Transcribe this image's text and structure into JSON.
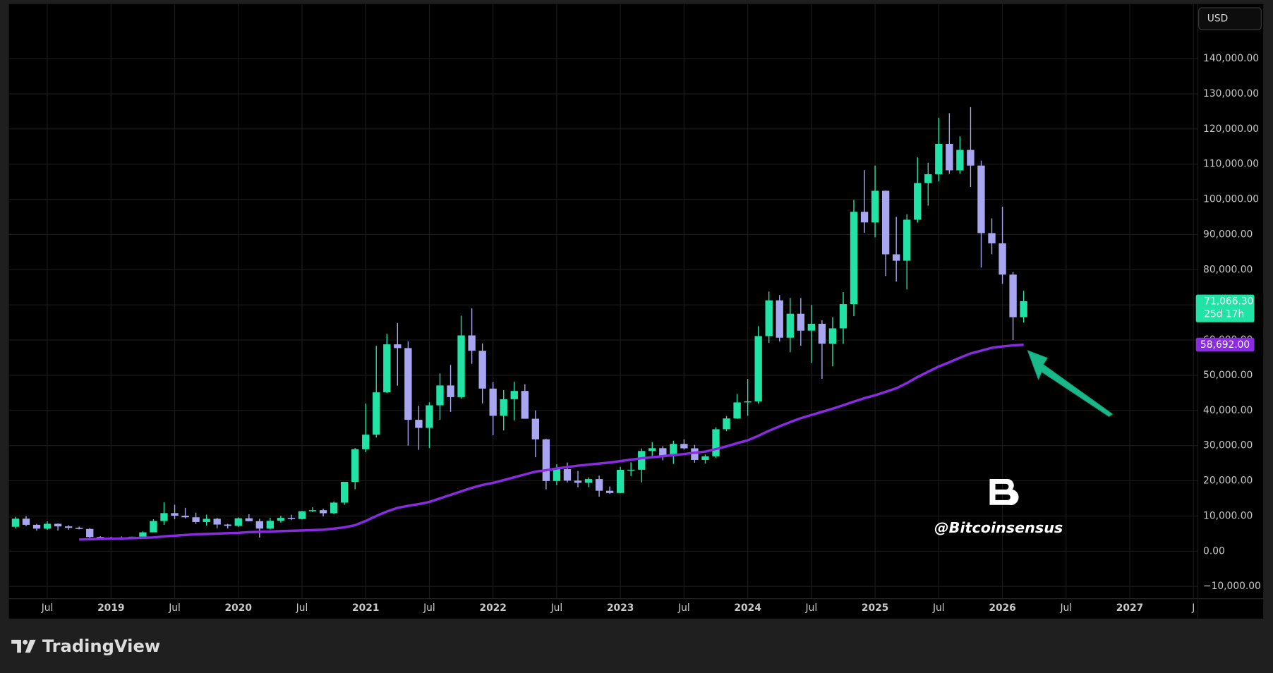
{
  "toolbar": {
    "currency": "USD"
  },
  "footer": {
    "brand": "TradingView"
  },
  "chart_data": {
    "type": "candlestick",
    "x": [
      "2018-04",
      "2018-05",
      "2018-06",
      "2018-07",
      "2018-08",
      "2018-09",
      "2018-10",
      "2018-11",
      "2018-12",
      "2019-01",
      "2019-02",
      "2019-03",
      "2019-04",
      "2019-05",
      "2019-06",
      "2019-07",
      "2019-08",
      "2019-09",
      "2019-10",
      "2019-11",
      "2019-12",
      "2020-01",
      "2020-02",
      "2020-03",
      "2020-04",
      "2020-05",
      "2020-06",
      "2020-07",
      "2020-08",
      "2020-09",
      "2020-10",
      "2020-11",
      "2020-12",
      "2021-01",
      "2021-02",
      "2021-03",
      "2021-04",
      "2021-05",
      "2021-06",
      "2021-07",
      "2021-08",
      "2021-09",
      "2021-10",
      "2021-11",
      "2021-12",
      "2022-01",
      "2022-02",
      "2022-03",
      "2022-04",
      "2022-05",
      "2022-06",
      "2022-07",
      "2022-08",
      "2022-09",
      "2022-10",
      "2022-11",
      "2022-12",
      "2023-01",
      "2023-02",
      "2023-03",
      "2023-04",
      "2023-05",
      "2023-06",
      "2023-07",
      "2023-08",
      "2023-09",
      "2023-10",
      "2023-11",
      "2023-12",
      "2024-01",
      "2024-02",
      "2024-03",
      "2024-04",
      "2024-05",
      "2024-06",
      "2024-07",
      "2024-08",
      "2024-09",
      "2024-10",
      "2024-11",
      "2024-12",
      "2025-01",
      "2025-02",
      "2025-03",
      "2025-04",
      "2025-05",
      "2025-06",
      "2025-07",
      "2025-08",
      "2025-09",
      "2025-10",
      "2025-11",
      "2025-12",
      "2026-01",
      "2026-02",
      "2026-03"
    ],
    "open": [
      6926,
      9240,
      7494,
      6404,
      7780,
      7037,
      6626,
      6318,
      4017,
      3742,
      3457,
      3854,
      4105,
      5350,
      8574,
      10817,
      10085,
      9630,
      8293,
      9199,
      7569,
      7193,
      9350,
      8523,
      6410,
      8620,
      9450,
      9140,
      11350,
      11655,
      10780,
      13800,
      19700,
      28990,
      33110,
      45140,
      58790,
      57720,
      37330,
      35040,
      41460,
      47100,
      43790,
      61320,
      56950,
      46210,
      38470,
      43190,
      45540,
      37640,
      31790,
      19940,
      23300,
      20050,
      19430,
      20490,
      17170,
      16540,
      23120,
      23150,
      28470,
      29270,
      27220,
      30480,
      29230,
      25940,
      26970,
      34660,
      37720,
      42280,
      42580,
      61130,
      71290,
      60670,
      67490,
      62680,
      64630,
      58970,
      63330,
      70220,
      96450,
      93430,
      102430,
      84370,
      82550,
      94210,
      104640,
      107140,
      115760,
      108240,
      114050,
      109600,
      90400,
      87500,
      78600,
      66500
    ],
    "high": [
      9759,
      9990,
      7764,
      8488,
      7880,
      7410,
      6965,
      6557,
      4245,
      4110,
      4200,
      4120,
      5600,
      9090,
      13880,
      13200,
      12320,
      10950,
      10370,
      9510,
      7750,
      9580,
      10500,
      9190,
      9470,
      10070,
      10380,
      11440,
      12470,
      12070,
      14100,
      19480,
      29300,
      41950,
      58350,
      61780,
      64850,
      59590,
      41330,
      42320,
      50500,
      52920,
      66930,
      69000,
      59040,
      47990,
      45800,
      48190,
      47440,
      40000,
      31960,
      24670,
      25200,
      22800,
      20990,
      21480,
      18400,
      23960,
      25250,
      29190,
      31000,
      29820,
      31390,
      31800,
      30200,
      27480,
      35200,
      38420,
      44700,
      48970,
      63970,
      73780,
      72800,
      71960,
      71950,
      70000,
      65600,
      66500,
      73620,
      99800,
      108300,
      109600,
      102500,
      95000,
      95760,
      111900,
      110400,
      123200,
      124500,
      117900,
      126200,
      111000,
      94600,
      97900,
      79300,
      74000
    ],
    "low": [
      6425,
      7090,
      5826,
      6072,
      5880,
      6110,
      6236,
      3550,
      3156,
      3400,
      3392,
      3750,
      4050,
      5350,
      7480,
      9060,
      9320,
      7710,
      7300,
      6515,
      6430,
      6870,
      8450,
      3850,
      6150,
      8120,
      8830,
      8990,
      11100,
      9880,
      10520,
      13200,
      17600,
      28130,
      32300,
      44960,
      47040,
      30000,
      28800,
      29300,
      37330,
      39600,
      43300,
      53250,
      42000,
      32930,
      34320,
      37160,
      37700,
      26700,
      17570,
      18780,
      19550,
      18150,
      18200,
      15480,
      16260,
      16500,
      21350,
      19550,
      26940,
      25810,
      24800,
      28860,
      25140,
      24900,
      26550,
      34100,
      37600,
      38500,
      41880,
      59220,
      59600,
      56550,
      58400,
      53500,
      49000,
      52550,
      58900,
      66800,
      90500,
      89200,
      78200,
      76600,
      74400,
      93400,
      98200,
      105100,
      107300,
      107300,
      103500,
      80600,
      84400,
      76000,
      60000,
      65000
    ],
    "close": [
      9240,
      7494,
      6404,
      7780,
      7037,
      6626,
      6318,
      4017,
      3742,
      3457,
      3854,
      4105,
      5350,
      8574,
      10817,
      10085,
      9630,
      8293,
      9199,
      7569,
      7193,
      9350,
      8523,
      6410,
      8620,
      9450,
      9140,
      11350,
      11655,
      10780,
      13800,
      19700,
      28990,
      33110,
      45140,
      58790,
      57720,
      37330,
      35040,
      41460,
      47100,
      43790,
      61320,
      56950,
      46210,
      38470,
      43190,
      45540,
      37640,
      31790,
      19940,
      23300,
      20050,
      19430,
      20490,
      17170,
      16540,
      23120,
      23150,
      28470,
      29270,
      27220,
      30480,
      29230,
      25940,
      26970,
      34660,
      37720,
      42280,
      42580,
      61130,
      71290,
      60670,
      67490,
      62680,
      64630,
      58970,
      63330,
      70220,
      96450,
      93430,
      102430,
      84370,
      82550,
      94210,
      104640,
      107140,
      115760,
      108240,
      114050,
      109600,
      90400,
      87500,
      78600,
      66500,
      71066.3
    ],
    "up_color": "#22e3a6",
    "down_color": "#a9a6f1",
    "series": [
      {
        "color": "#8a2be2",
        "last_label": "58,692.00",
        "values": [
          null,
          null,
          null,
          null,
          null,
          null,
          3300,
          3400,
          3500,
          3550,
          3600,
          3700,
          3800,
          3900,
          4200,
          4400,
          4600,
          4800,
          4900,
          5000,
          5100,
          5200,
          5400,
          5500,
          5600,
          5700,
          5800,
          5900,
          6000,
          6100,
          6400,
          6800,
          7400,
          8600,
          10000,
          11300,
          12300,
          12900,
          13400,
          14000,
          15000,
          16000,
          17000,
          18000,
          18800,
          19400,
          20200,
          21000,
          21800,
          22600,
          23000,
          23500,
          23900,
          24300,
          24600,
          24900,
          25200,
          25600,
          26000,
          26400,
          26700,
          27000,
          27300,
          27600,
          28000,
          28300,
          29000,
          29800,
          30700,
          31500,
          32800,
          34200,
          35500,
          36700,
          37800,
          38700,
          39600,
          40500,
          41500,
          42500,
          43500,
          44300,
          45300,
          46300,
          47800,
          49500,
          51000,
          52500,
          53700,
          55000,
          56200,
          57000,
          57800,
          58200,
          58500,
          58692
        ]
      }
    ],
    "last_price_label": "71,066.30",
    "countdown": "25d 17h",
    "watermark": "@Bitcoinsensus",
    "ylim": [
      -13400,
      155500
    ],
    "yticks": [
      {
        "value": -10000,
        "label": "−10,000.00"
      },
      {
        "value": 0,
        "label": "0.00"
      },
      {
        "value": 10000,
        "label": "10,000.00"
      },
      {
        "value": 20000,
        "label": "20,000.00"
      },
      {
        "value": 30000,
        "label": "30,000.00"
      },
      {
        "value": 40000,
        "label": "40,000.00"
      },
      {
        "value": 50000,
        "label": "50,000.00"
      },
      {
        "value": 60000,
        "label": "60,000.00"
      },
      {
        "value": 70000,
        "label": "70,000.00"
      },
      {
        "value": 80000,
        "label": "80,000.00"
      },
      {
        "value": 90000,
        "label": "90,000.00"
      },
      {
        "value": 100000,
        "label": "100,000.00"
      },
      {
        "value": 110000,
        "label": "110,000.00"
      },
      {
        "value": 120000,
        "label": "120,000.00"
      },
      {
        "value": 130000,
        "label": "130,000.00"
      },
      {
        "value": 140000,
        "label": "140,000.00"
      }
    ],
    "xlim": [
      "2018-03",
      "2027-07"
    ],
    "xticks": [
      {
        "value": "2018-07",
        "label": "Jul"
      },
      {
        "value": "2019-01",
        "label": "2019"
      },
      {
        "value": "2019-07",
        "label": "Jul"
      },
      {
        "value": "2020-01",
        "label": "2020"
      },
      {
        "value": "2020-07",
        "label": "Jul"
      },
      {
        "value": "2021-01",
        "label": "2021"
      },
      {
        "value": "2021-07",
        "label": "Jul"
      },
      {
        "value": "2022-01",
        "label": "2022"
      },
      {
        "value": "2022-07",
        "label": "Jul"
      },
      {
        "value": "2023-01",
        "label": "2023"
      },
      {
        "value": "2023-07",
        "label": "Jul"
      },
      {
        "value": "2024-01",
        "label": "2024"
      },
      {
        "value": "2024-07",
        "label": "Jul"
      },
      {
        "value": "2025-01",
        "label": "2025"
      },
      {
        "value": "2025-07",
        "label": "Jul"
      },
      {
        "value": "2026-01",
        "label": "2026"
      },
      {
        "value": "2026-07",
        "label": "Jul"
      },
      {
        "value": "2027-01",
        "label": "2027"
      },
      {
        "value": "2027-07",
        "label": "J"
      }
    ],
    "grid": true
  }
}
